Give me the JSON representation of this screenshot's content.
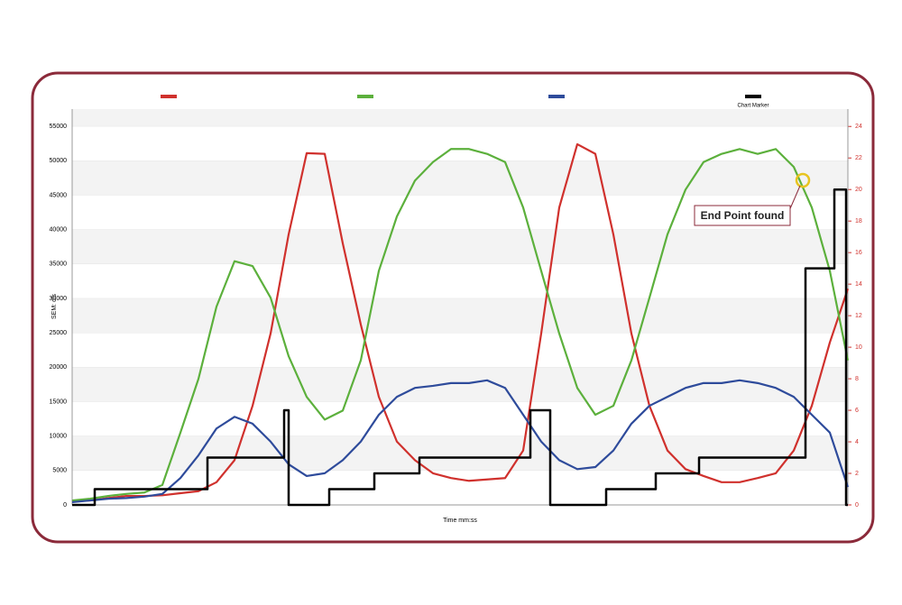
{
  "chart_data": {
    "type": "line",
    "y_label": "SEM: c/s",
    "x_label": "Time mm:ss",
    "annotation": "End Point found",
    "x": [
      0,
      1,
      2,
      3,
      4,
      5,
      6,
      7,
      8,
      9,
      10,
      11,
      12,
      13,
      14,
      15,
      16,
      17,
      18,
      19,
      20,
      21,
      22,
      23,
      24,
      25,
      26,
      27,
      28,
      29,
      30,
      31,
      32,
      33,
      34,
      35,
      36,
      37,
      38,
      39,
      40,
      41,
      42,
      43
    ],
    "xlim": [
      0,
      43
    ],
    "ylim": [
      0,
      57500
    ],
    "yticks": [
      0,
      5000,
      10000,
      15000,
      20000,
      25000,
      30000,
      35000,
      40000,
      45000,
      50000,
      55000
    ],
    "y2lim": [
      0,
      25.1
    ],
    "y2ticks": [
      0,
      2,
      4,
      6,
      8,
      10,
      12,
      14,
      16,
      18,
      20,
      22,
      24
    ],
    "grid": true,
    "series": [
      {
        "color": "#d0312d",
        "values": [
          500,
          650,
          1000,
          1300,
          1300,
          1400,
          1700,
          2000,
          3300,
          6500,
          14400,
          24900,
          39300,
          51100,
          51000,
          38000,
          26200,
          15700,
          9200,
          6500,
          4600,
          3900,
          3500,
          3700,
          3900,
          7900,
          24900,
          43200,
          52400,
          51000,
          39300,
          24900,
          14400,
          7900,
          5200,
          4200,
          3300,
          3300,
          3900,
          4600,
          7900,
          14400,
          23600,
          31400
        ]
      },
      {
        "color": "#5cb03c",
        "values": [
          650,
          900,
          1300,
          1600,
          1800,
          2900,
          10500,
          18300,
          28800,
          35400,
          34700,
          30100,
          21600,
          15700,
          12400,
          13700,
          21000,
          34000,
          41900,
          47100,
          49800,
          51700,
          51700,
          51000,
          49800,
          43200,
          34000,
          24900,
          17000,
          13100,
          14400,
          21000,
          30100,
          39300,
          45800,
          49800,
          51000,
          51700,
          51000,
          51700,
          49100,
          43200,
          34000,
          21000
        ]
      },
      {
        "color": "#2e4b9b",
        "values": [
          400,
          650,
          900,
          1000,
          1200,
          1600,
          3900,
          7200,
          11100,
          12800,
          11800,
          9200,
          5900,
          4200,
          4600,
          6500,
          9200,
          13100,
          15700,
          17000,
          17300,
          17700,
          17700,
          18100,
          17000,
          13100,
          9200,
          6500,
          5200,
          5500,
          7900,
          11800,
          14400,
          15700,
          17000,
          17700,
          17700,
          18100,
          17700,
          17000,
          15700,
          13100,
          10500,
          2600
        ]
      },
      {
        "name": "Chart Marker",
        "color": "#000000",
        "axis": "y2",
        "step": "post",
        "x": [
          0,
          1.25,
          7.5,
          11.75,
          12,
          14.25,
          16.75,
          19.25,
          25.4,
          26.5,
          29.6,
          32.35,
          34.75,
          40.65,
          42.25,
          42.9
        ],
        "values": [
          0,
          1,
          3,
          6,
          0,
          1,
          2,
          3,
          6,
          0,
          1,
          2,
          3,
          15,
          20,
          0
        ]
      }
    ]
  }
}
